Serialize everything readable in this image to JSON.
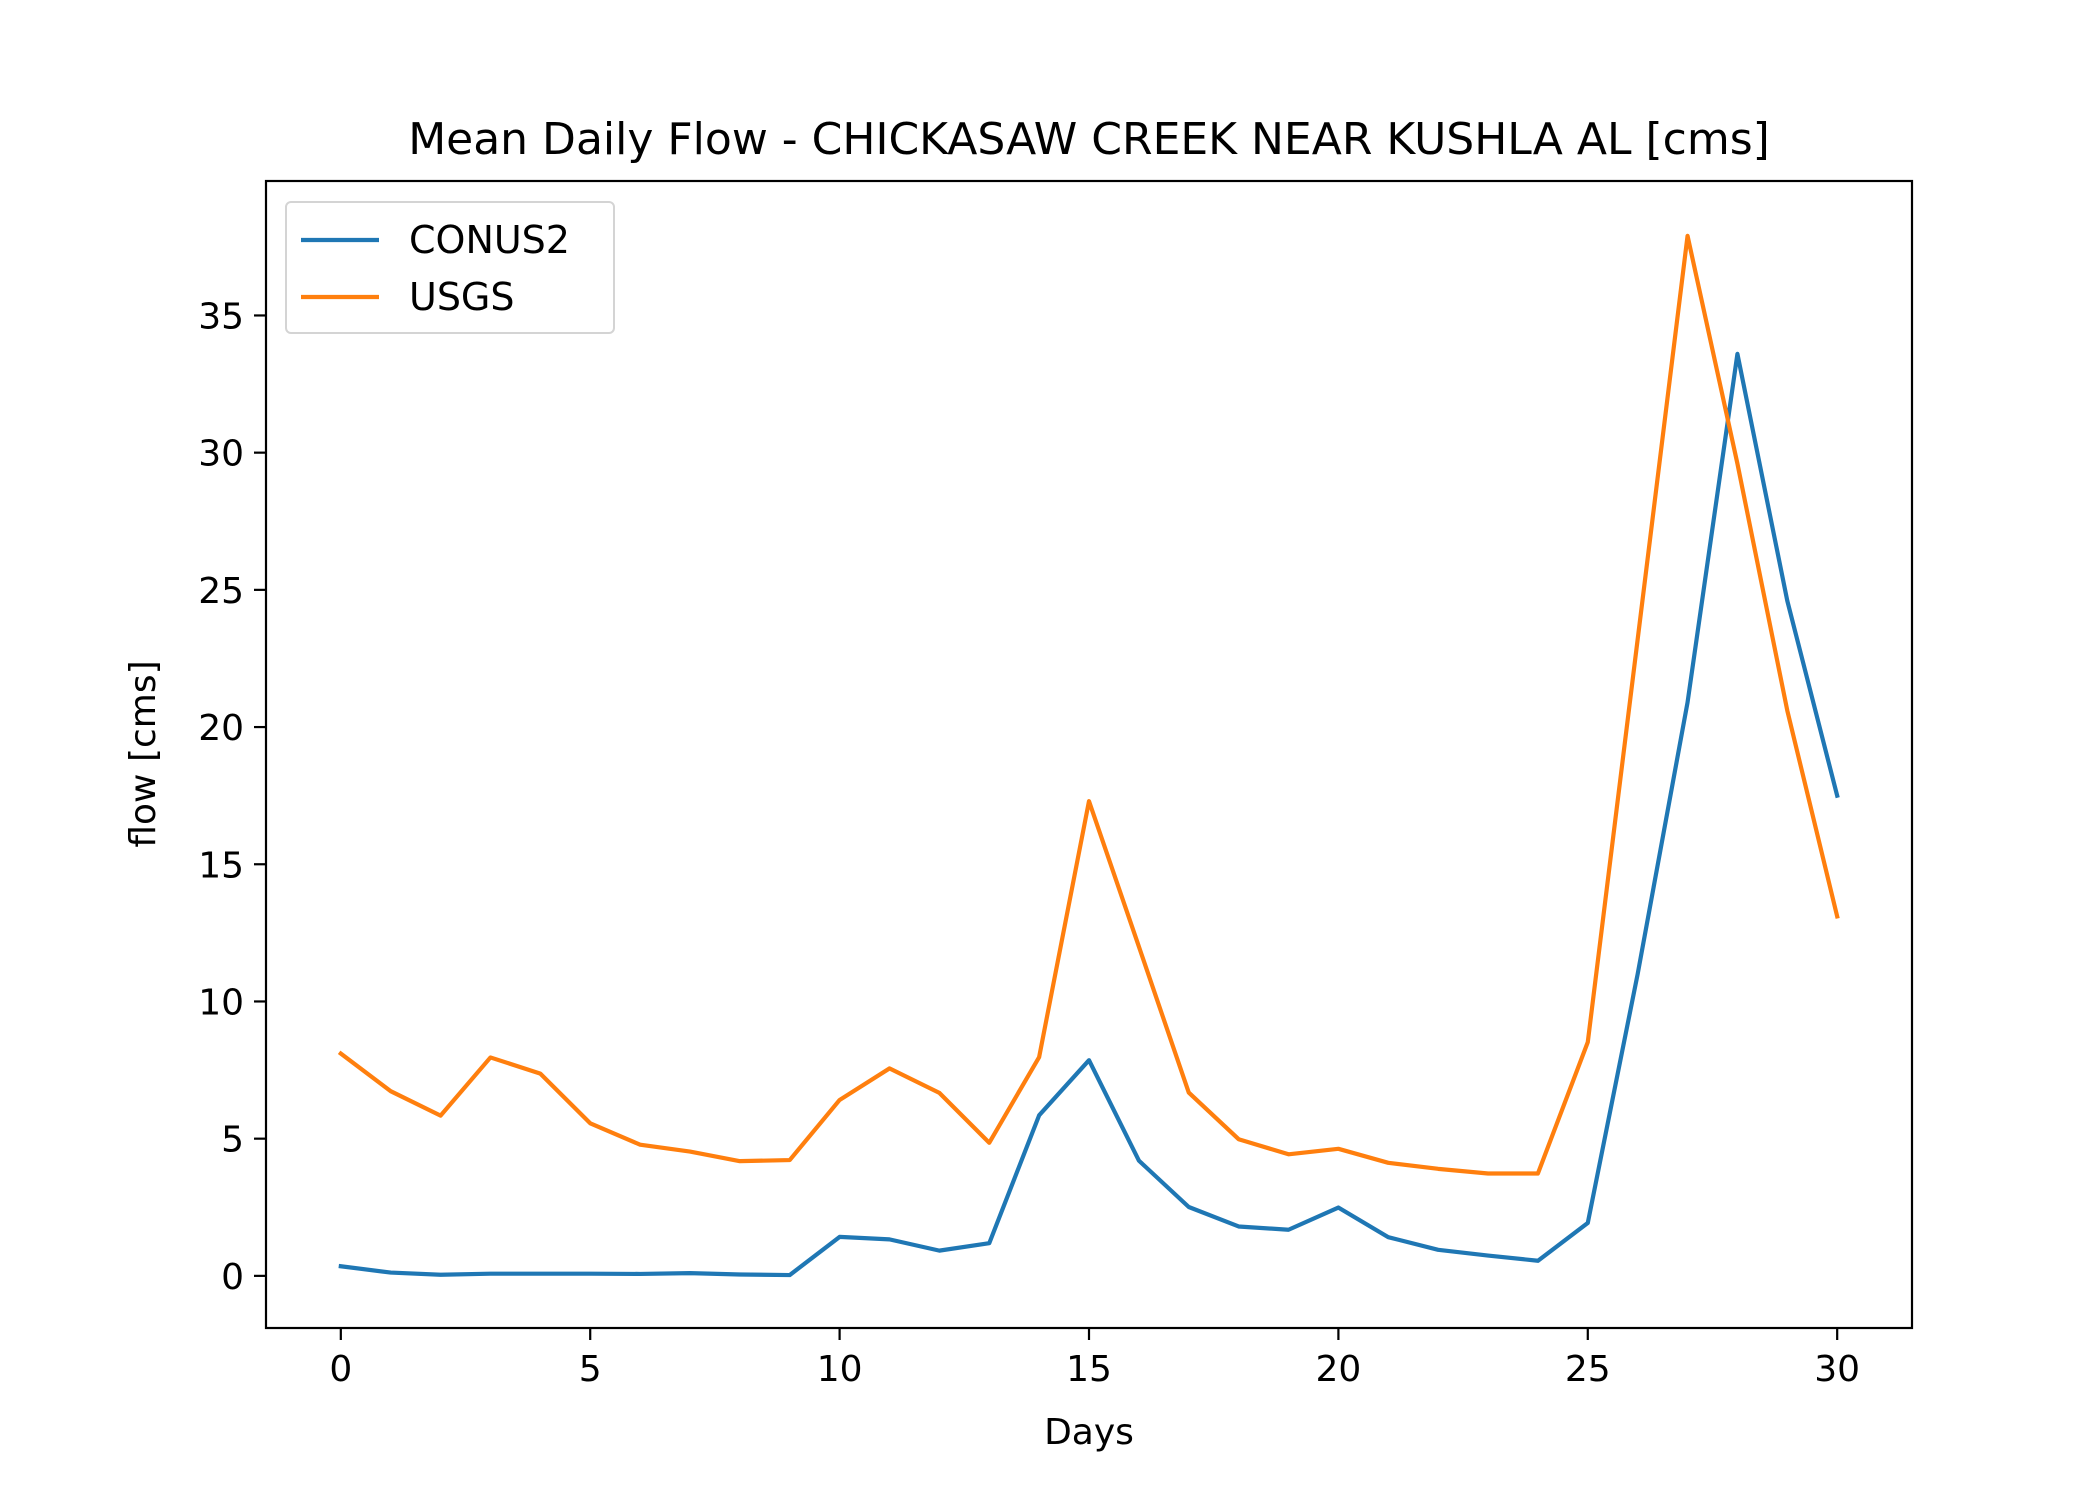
{
  "chart_data": {
    "type": "line",
    "title": "Mean Daily Flow - CHICKASAW CREEK NEAR KUSHLA AL [cms]",
    "xlabel": "Days",
    "ylabel": "flow [cms]",
    "xlim": [
      -1.5,
      31.5
    ],
    "ylim": [
      -1.9,
      39.9
    ],
    "xticks": [
      0,
      5,
      10,
      15,
      20,
      25,
      30
    ],
    "yticks": [
      0,
      5,
      10,
      15,
      20,
      25,
      30,
      35
    ],
    "grid": false,
    "legend_position": "upper-left",
    "x": [
      0,
      1,
      2,
      3,
      4,
      5,
      6,
      7,
      8,
      9,
      10,
      11,
      12,
      13,
      14,
      15,
      16,
      17,
      18,
      19,
      20,
      21,
      22,
      23,
      24,
      25,
      26,
      27,
      28,
      29,
      30
    ],
    "series": [
      {
        "name": "CONUS2",
        "color": "#1f77b4",
        "values": [
          0.35,
          0.12,
          0.04,
          0.08,
          0.08,
          0.08,
          0.07,
          0.1,
          0.05,
          0.03,
          1.42,
          1.33,
          0.92,
          1.19,
          5.85,
          7.86,
          4.2,
          2.51,
          1.8,
          1.68,
          2.49,
          1.41,
          0.95,
          0.74,
          0.55,
          1.93,
          11.0,
          20.9,
          33.6,
          24.6,
          17.5
        ]
      },
      {
        "name": "USGS",
        "color": "#ff7f0e",
        "values": [
          8.1,
          6.73,
          5.84,
          7.96,
          7.37,
          5.56,
          4.78,
          4.53,
          4.18,
          4.22,
          6.41,
          7.56,
          6.67,
          4.85,
          7.97,
          17.3,
          12.0,
          6.68,
          4.98,
          4.43,
          4.63,
          4.12,
          3.9,
          3.73,
          3.73,
          8.52,
          23.2,
          37.9,
          29.6,
          20.6,
          13.1
        ]
      }
    ]
  }
}
